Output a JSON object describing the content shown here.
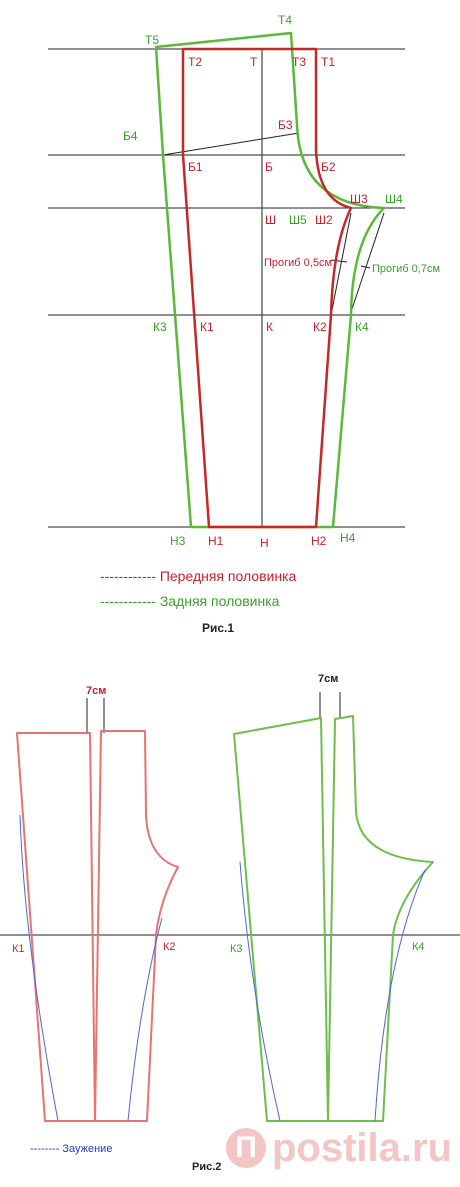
{
  "figure1": {
    "caption": "Рис.1",
    "legend_front": "------------ Передняя половинка",
    "legend_back": "------------ Задняя половинка",
    "prog1": "Прогиб 0,5см",
    "prog2": "Прогиб 0,7см",
    "labels": {
      "T5": "Т5",
      "T4": "Т4",
      "T2": "Т2",
      "T": "Т",
      "T3": "Т3",
      "T1": "Т1",
      "B4": "Б4",
      "B3": "Б3",
      "B1": "Б1",
      "B": "Б",
      "B2": "Б2",
      "Sh": "Ш",
      "Sh5": "Ш5",
      "Sh2": "Ш2",
      "Sh3": "Ш3",
      "Sh4": "Ш4",
      "K3": "К3",
      "K1": "К1",
      "K": "К",
      "K2": "К2",
      "K4": "К4",
      "N3": "Н3",
      "N1": "Н1",
      "N": "Н",
      "N2": "Н2",
      "N4": "Н4"
    }
  },
  "figure2": {
    "caption": "Рис.2",
    "cm_left": "7см",
    "cm_right": "7см",
    "K1": "К1",
    "K2": "К2",
    "K3": "К3",
    "K4": "К4",
    "legend": "-------- Заужение"
  },
  "watermark": {
    "mark": "П",
    "text": "postila.ru"
  },
  "colors": {
    "front": "#cc1e2b",
    "back": "#3aa029",
    "narrowing": "#1f3cc8",
    "lines": "#222222"
  }
}
